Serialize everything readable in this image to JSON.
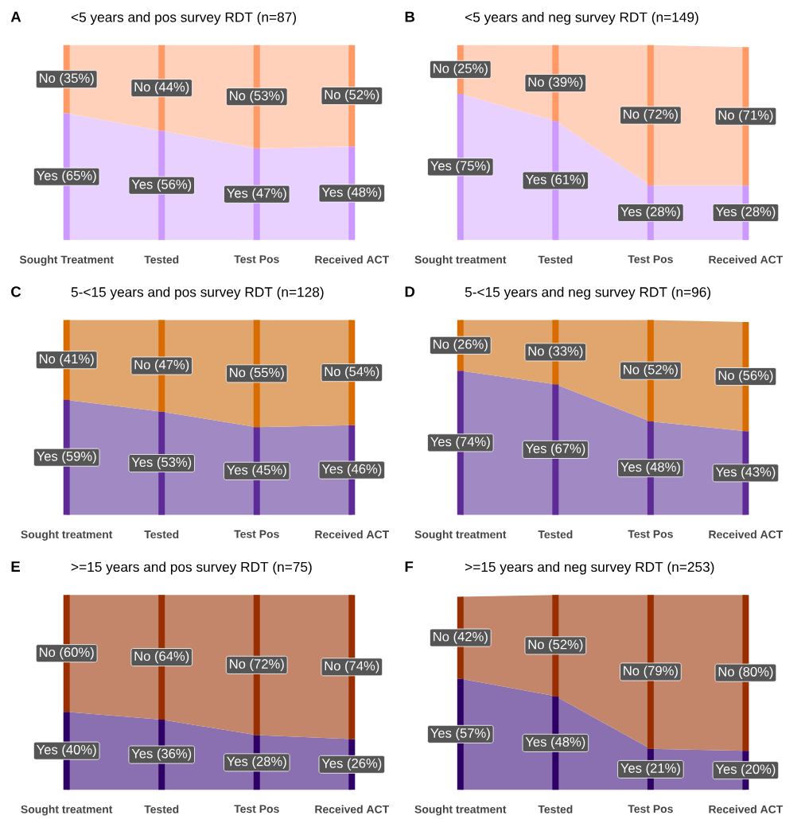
{
  "chart_data": [
    {
      "type": "area",
      "stacked": true,
      "title": "<5 years and pos survey RDT (n=87)",
      "annotations": [
        "A"
      ],
      "categories": [
        "Sought Treatment",
        "Tested",
        "Test Pos",
        "Received ACT"
      ],
      "series": [
        {
          "color": "#e8d1ff",
          "values": [
            65,
            56,
            47,
            48
          ]
        },
        {
          "color": "#ffd1ba",
          "values": [
            35,
            44,
            53,
            52
          ]
        },
        {
          "type": "bar",
          "color": "#cc99ff",
          "values": [
            65,
            56,
            47,
            48
          ],
          "value_labels": [
            "Yes (65%)",
            "Yes (56%)",
            "Yes (47%)",
            "Yes (48%)"
          ]
        },
        {
          "type": "bar",
          "color": "#ff9966",
          "values": [
            35,
            44,
            53,
            52
          ],
          "value_labels": [
            "No (35%)",
            "No (44%)",
            "No (53%)",
            "No (52%)"
          ]
        }
      ]
    },
    {
      "type": "area",
      "stacked": true,
      "title": "<5 years and neg survey RDT (n=149)",
      "annotations": [
        "B"
      ],
      "categories": [
        "Sought treatment",
        "Tested",
        "Test Pos",
        "Received ACT"
      ],
      "series": [
        {
          "color": "#e8d1ff",
          "values": [
            75,
            61,
            28,
            28
          ]
        },
        {
          "color": "#ffd1ba",
          "values": [
            25,
            39,
            72,
            71
          ]
        },
        {
          "type": "bar",
          "color": "#cc99ff",
          "values": [
            75,
            61,
            28,
            28
          ],
          "value_labels": [
            "Yes (75%)",
            "Yes (61%)",
            "Yes (28%)",
            "Yes (28%)"
          ]
        },
        {
          "type": "bar",
          "color": "#ff9966",
          "values": [
            25,
            39,
            72,
            71
          ],
          "value_labels": [
            "No (25%)",
            "No (39%)",
            "No (72%)",
            "No (71%)"
          ]
        }
      ]
    },
    {
      "type": "area",
      "stacked": true,
      "title": "5-<15 years and pos survey RDT (n=128)",
      "annotations": [
        "C"
      ],
      "categories": [
        "Sought treatment",
        "Tested",
        "Test Pos",
        "Received ACT"
      ],
      "series": [
        {
          "color": "#a18ac4",
          "values": [
            59,
            53,
            45,
            46
          ]
        },
        {
          "color": "#e0a66e",
          "values": [
            41,
            47,
            55,
            54
          ]
        },
        {
          "type": "bar",
          "color": "#5e2a96",
          "values": [
            59,
            53,
            45,
            46
          ],
          "value_labels": [
            "Yes (59%)",
            "Yes (53%)",
            "Yes (45%)",
            "Yes (46%)"
          ]
        },
        {
          "type": "bar",
          "color": "#d96c00",
          "values": [
            41,
            47,
            55,
            54
          ],
          "value_labels": [
            "No (41%)",
            "No (47%)",
            "No (55%)",
            "No (54%)"
          ]
        }
      ]
    },
    {
      "type": "area",
      "stacked": true,
      "title": "5-<15 years and neg survey RDT (n=96)",
      "annotations": [
        "D"
      ],
      "categories": [
        "Sought treatment",
        "Tested",
        "Test Pos",
        "Received ACT"
      ],
      "series": [
        {
          "color": "#a18ac4",
          "values": [
            74,
            67,
            48,
            43
          ]
        },
        {
          "color": "#e0a66e",
          "values": [
            26,
            33,
            52,
            56
          ]
        },
        {
          "type": "bar",
          "color": "#5e2a96",
          "values": [
            74,
            67,
            48,
            43
          ],
          "value_labels": [
            "Yes (74%)",
            "Yes (67%)",
            "Yes (48%)",
            "Yes (43%)"
          ]
        },
        {
          "type": "bar",
          "color": "#d96c00",
          "values": [
            26,
            33,
            52,
            56
          ],
          "value_labels": [
            "No (26%)",
            "No (33%)",
            "No (52%)",
            "No (56%)"
          ]
        }
      ]
    },
    {
      "type": "area",
      "stacked": true,
      "title": ">=15 years and pos survey RDT (n=75)",
      "annotations": [
        "E"
      ],
      "categories": [
        "Sought treatment",
        "Tested",
        "Test Pos",
        "Received ACT"
      ],
      "series": [
        {
          "color": "#8a70b0",
          "values": [
            40,
            36,
            28,
            26
          ]
        },
        {
          "color": "#c4866a",
          "values": [
            60,
            64,
            72,
            74
          ]
        },
        {
          "type": "bar",
          "color": "#2e0066",
          "values": [
            40,
            36,
            28,
            26
          ],
          "value_labels": [
            "Yes (40%)",
            "Yes (36%)",
            "Yes (28%)",
            "Yes (26%)"
          ]
        },
        {
          "type": "bar",
          "color": "#992e00",
          "values": [
            60,
            64,
            72,
            74
          ],
          "value_labels": [
            "No (60%)",
            "No (64%)",
            "No (72%)",
            "No (74%)"
          ]
        }
      ]
    },
    {
      "type": "area",
      "stacked": true,
      "title": ">=15 years and neg survey RDT (n=253)",
      "annotations": [
        "F"
      ],
      "categories": [
        "Sought treatment",
        "Tested",
        "Test Pos",
        "Received ACT"
      ],
      "series": [
        {
          "color": "#8a70b0",
          "values": [
            57,
            48,
            21,
            20
          ]
        },
        {
          "color": "#c4866a",
          "values": [
            42,
            52,
            79,
            80
          ]
        },
        {
          "type": "bar",
          "color": "#2e0066",
          "values": [
            57,
            48,
            21,
            20
          ],
          "value_labels": [
            "Yes (57%)",
            "Yes (48%)",
            "Yes (21%)",
            "Yes (20%)"
          ]
        },
        {
          "type": "bar",
          "color": "#992e00",
          "values": [
            42,
            52,
            79,
            80
          ],
          "value_labels": [
            "No (42%)",
            "No (52%)",
            "No (79%)",
            "No (80%)"
          ]
        }
      ]
    }
  ]
}
